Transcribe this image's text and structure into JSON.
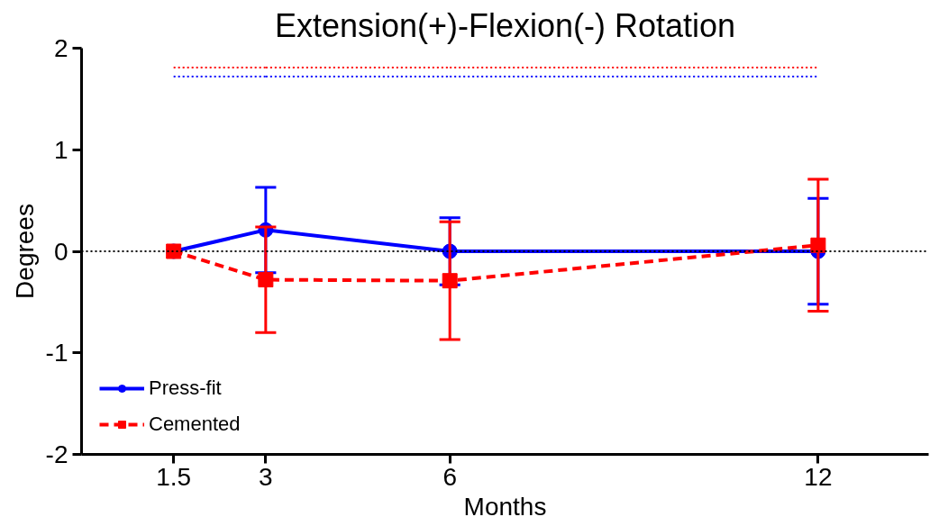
{
  "chart_data": {
    "type": "line",
    "title": "Extension(+)-Flexion(-) Rotation",
    "xlabel": "Months",
    "ylabel": "Degrees",
    "x": [
      1.5,
      3,
      6,
      12
    ],
    "series": [
      {
        "name": "Press-fit",
        "color": "#0000ff",
        "values": [
          0,
          0.21,
          0,
          0
        ],
        "errors": [
          null,
          0.42,
          0.33,
          0.52
        ],
        "marker": "circle",
        "line_style": "solid"
      },
      {
        "name": "Cemented",
        "color": "#ff0000",
        "values": [
          0,
          -0.28,
          -0.29,
          0.06
        ],
        "errors": [
          null,
          0.52,
          0.58,
          0.65
        ],
        "marker": "square",
        "line_style": "dashed"
      },
      {
        "color": "#ff0000",
        "values": [
          1.81,
          1.81,
          1.81,
          1.81
        ],
        "marker": "none",
        "line_style": "dotted"
      },
      {
        "color": "#0000ff",
        "values": [
          1.72,
          1.72,
          1.72,
          1.72
        ],
        "marker": "none",
        "line_style": "dotted"
      }
    ],
    "ref_lines": [
      {
        "axis": "y",
        "value": 0,
        "color": "#000000",
        "line_style": "dotted"
      }
    ],
    "xlim": [
      0,
      13.8
    ],
    "xticks": [
      1.5,
      3,
      6,
      12
    ],
    "ylim": [
      -2,
      2
    ],
    "yticks": [
      -2,
      -1,
      0,
      1,
      2
    ],
    "grid": false,
    "legend": "bottom left"
  }
}
